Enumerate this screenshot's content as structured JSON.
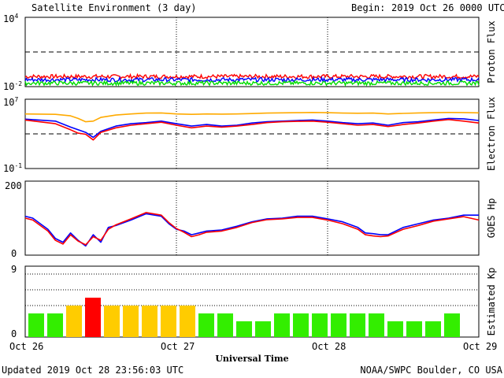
{
  "header": {
    "title": "Satellite Environment (3 day)",
    "begin_label": "Begin:",
    "begin_value": "2019 Oct 26 0000 UTC"
  },
  "footer": {
    "updated": "Updated 2019 Oct 28 23:56:03 UTC",
    "credit": "NOAA/SWPC Boulder, CO USA"
  },
  "x_axis": {
    "label": "Universal Time",
    "ticks": [
      "Oct 26",
      "Oct 27",
      "Oct 28",
      "Oct 29"
    ]
  },
  "chart_data": [
    {
      "type": "line",
      "panel": "proton",
      "ylabel": "Proton Flux",
      "scale": "log",
      "ylim": [
        0.01,
        10000
      ],
      "tick_labels": [
        {
          "base": "10",
          "exp": "4"
        },
        {
          "base": "10",
          "exp": "-2"
        }
      ],
      "threshold": 10,
      "x_range_days": [
        0,
        3
      ],
      "series": [
        {
          "color": "#ff0000",
          "level": 0.075
        },
        {
          "color": "#0000ff",
          "level": 0.04
        },
        {
          "color": "#00dd00",
          "level": 0.02
        }
      ]
    },
    {
      "type": "line",
      "panel": "electron",
      "ylabel": "Electron Flux",
      "scale": "log",
      "ylim": [
        0.1,
        10000000
      ],
      "tick_labels": [
        {
          "base": "10",
          "exp": "7"
        },
        {
          "base": "10",
          "exp": "-1"
        }
      ],
      "threshold": 1000,
      "x_range_days": [
        0,
        3
      ],
      "series": [
        {
          "color": "#0000ff",
          "points": [
            [
              0,
              50000
            ],
            [
              0.2,
              30000
            ],
            [
              0.3,
              6000
            ],
            [
              0.35,
              3000
            ],
            [
              0.4,
              1500
            ],
            [
              0.45,
              400
            ],
            [
              0.5,
              2000
            ],
            [
              0.6,
              8000
            ],
            [
              0.7,
              15000
            ],
            [
              0.8,
              20000
            ],
            [
              0.9,
              30000
            ],
            [
              1.0,
              15000
            ],
            [
              1.1,
              8000
            ],
            [
              1.2,
              12000
            ],
            [
              1.3,
              8000
            ],
            [
              1.4,
              10000
            ],
            [
              1.5,
              18000
            ],
            [
              1.6,
              25000
            ],
            [
              1.7,
              30000
            ],
            [
              1.8,
              35000
            ],
            [
              1.9,
              40000
            ],
            [
              2.0,
              30000
            ],
            [
              2.1,
              20000
            ],
            [
              2.2,
              15000
            ],
            [
              2.3,
              18000
            ],
            [
              2.4,
              10000
            ],
            [
              2.5,
              20000
            ],
            [
              2.6,
              25000
            ],
            [
              2.7,
              40000
            ],
            [
              2.8,
              60000
            ],
            [
              2.9,
              55000
            ],
            [
              3.0,
              35000
            ]
          ]
        },
        {
          "color": "#ff0000",
          "points": [
            [
              0,
              40000
            ],
            [
              0.2,
              15000
            ],
            [
              0.3,
              3000
            ],
            [
              0.35,
              1200
            ],
            [
              0.4,
              900
            ],
            [
              0.45,
              200
            ],
            [
              0.5,
              1500
            ],
            [
              0.6,
              5000
            ],
            [
              0.7,
              10000
            ],
            [
              0.8,
              15000
            ],
            [
              0.9,
              22000
            ],
            [
              1.0,
              10000
            ],
            [
              1.1,
              5000
            ],
            [
              1.2,
              8000
            ],
            [
              1.3,
              6000
            ],
            [
              1.4,
              8000
            ],
            [
              1.5,
              12000
            ],
            [
              1.6,
              20000
            ],
            [
              1.7,
              25000
            ],
            [
              1.8,
              28000
            ],
            [
              1.9,
              30000
            ],
            [
              2.0,
              22000
            ],
            [
              2.1,
              15000
            ],
            [
              2.2,
              10000
            ],
            [
              2.3,
              12000
            ],
            [
              2.4,
              7000
            ],
            [
              2.5,
              12000
            ],
            [
              2.6,
              18000
            ],
            [
              2.7,
              30000
            ],
            [
              2.8,
              45000
            ],
            [
              2.9,
              30000
            ],
            [
              3.0,
              18000
            ]
          ]
        },
        {
          "color": "#ffaa00",
          "points": [
            [
              0,
              200000
            ],
            [
              0.2,
              180000
            ],
            [
              0.3,
              120000
            ],
            [
              0.35,
              60000
            ],
            [
              0.4,
              25000
            ],
            [
              0.45,
              30000
            ],
            [
              0.5,
              80000
            ],
            [
              0.6,
              150000
            ],
            [
              0.7,
              200000
            ],
            [
              0.8,
              250000
            ],
            [
              0.9,
              260000
            ],
            [
              1.0,
              200000
            ],
            [
              1.1,
              180000
            ],
            [
              1.2,
              200000
            ],
            [
              1.3,
              190000
            ],
            [
              1.4,
              200000
            ],
            [
              1.5,
              220000
            ],
            [
              1.6,
              250000
            ],
            [
              1.7,
              270000
            ],
            [
              1.8,
              280000
            ],
            [
              1.9,
              300000
            ],
            [
              2.0,
              280000
            ],
            [
              2.1,
              250000
            ],
            [
              2.2,
              240000
            ],
            [
              2.3,
              250000
            ],
            [
              2.4,
              200000
            ],
            [
              2.5,
              230000
            ],
            [
              2.6,
              260000
            ],
            [
              2.7,
              280000
            ],
            [
              2.8,
              300000
            ],
            [
              2.9,
              290000
            ],
            [
              3.0,
              270000
            ]
          ]
        }
      ]
    },
    {
      "type": "line",
      "panel": "goes_hp",
      "ylabel": "GOES Hp",
      "scale": "linear",
      "ylim": [
        0,
        200
      ],
      "tick_labels": [
        "200",
        "0"
      ],
      "x_range_days": [
        0,
        3
      ],
      "series": [
        {
          "color": "#0000ff",
          "points": [
            [
              0,
              105
            ],
            [
              0.05,
              100
            ],
            [
              0.1,
              85
            ],
            [
              0.15,
              70
            ],
            [
              0.2,
              45
            ],
            [
              0.25,
              35
            ],
            [
              0.3,
              60
            ],
            [
              0.35,
              40
            ],
            [
              0.4,
              25
            ],
            [
              0.45,
              55
            ],
            [
              0.5,
              35
            ],
            [
              0.55,
              75
            ],
            [
              0.6,
              80
            ],
            [
              0.7,
              95
            ],
            [
              0.8,
              112
            ],
            [
              0.9,
              105
            ],
            [
              0.95,
              85
            ],
            [
              1.0,
              70
            ],
            [
              1.05,
              65
            ],
            [
              1.1,
              55
            ],
            [
              1.15,
              60
            ],
            [
              1.2,
              65
            ],
            [
              1.3,
              68
            ],
            [
              1.4,
              78
            ],
            [
              1.5,
              90
            ],
            [
              1.6,
              98
            ],
            [
              1.7,
              100
            ],
            [
              1.8,
              105
            ],
            [
              1.9,
              105
            ],
            [
              2.0,
              98
            ],
            [
              2.1,
              90
            ],
            [
              2.2,
              75
            ],
            [
              2.25,
              60
            ],
            [
              2.3,
              58
            ],
            [
              2.35,
              55
            ],
            [
              2.4,
              55
            ],
            [
              2.5,
              75
            ],
            [
              2.6,
              85
            ],
            [
              2.7,
              95
            ],
            [
              2.8,
              100
            ],
            [
              2.9,
              108
            ],
            [
              3.0,
              108
            ]
          ]
        },
        {
          "color": "#ff0000",
          "points": [
            [
              0,
              100
            ],
            [
              0.05,
              95
            ],
            [
              0.1,
              80
            ],
            [
              0.15,
              65
            ],
            [
              0.2,
              40
            ],
            [
              0.25,
              30
            ],
            [
              0.3,
              55
            ],
            [
              0.35,
              38
            ],
            [
              0.4,
              28
            ],
            [
              0.45,
              50
            ],
            [
              0.5,
              40
            ],
            [
              0.55,
              70
            ],
            [
              0.6,
              82
            ],
            [
              0.7,
              98
            ],
            [
              0.8,
              115
            ],
            [
              0.9,
              108
            ],
            [
              0.95,
              88
            ],
            [
              1.0,
              72
            ],
            [
              1.05,
              62
            ],
            [
              1.1,
              50
            ],
            [
              1.15,
              55
            ],
            [
              1.2,
              62
            ],
            [
              1.3,
              65
            ],
            [
              1.4,
              75
            ],
            [
              1.5,
              88
            ],
            [
              1.6,
              96
            ],
            [
              1.7,
              98
            ],
            [
              1.8,
              102
            ],
            [
              1.9,
              102
            ],
            [
              2.0,
              95
            ],
            [
              2.1,
              85
            ],
            [
              2.2,
              70
            ],
            [
              2.25,
              55
            ],
            [
              2.3,
              52
            ],
            [
              2.35,
              50
            ],
            [
              2.4,
              52
            ],
            [
              2.5,
              70
            ],
            [
              2.6,
              80
            ],
            [
              2.7,
              92
            ],
            [
              2.8,
              98
            ],
            [
              2.9,
              104
            ],
            [
              3.0,
              95
            ]
          ]
        }
      ]
    },
    {
      "type": "bar",
      "panel": "kp",
      "ylabel": "Estimated Kp",
      "ylim": [
        0,
        9
      ],
      "tick_labels": [
        "9",
        "0"
      ],
      "guide_levels": [
        4,
        6,
        8
      ],
      "values": [
        3,
        3,
        4,
        5,
        4,
        4,
        4,
        4,
        4,
        3,
        3,
        2,
        2,
        3,
        3,
        3,
        3,
        3,
        3,
        2,
        2,
        2,
        3
      ],
      "colors": {
        "quiet": "#33ee00",
        "active": "#ffcc00",
        "storm": "#ff0000"
      }
    }
  ]
}
